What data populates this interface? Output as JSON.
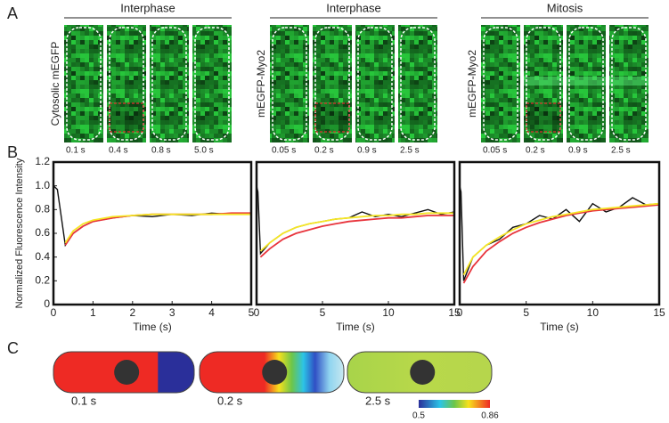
{
  "panel_a": {
    "letter": "A",
    "groups": [
      {
        "header": "Interphase",
        "label": "Cytosolic mEGFP",
        "times": [
          "0.1 s",
          "0.4 s",
          "0.8 s",
          "5.0 s"
        ]
      },
      {
        "header": "Interphase",
        "label": "mEGFP-Myo2",
        "times": [
          "0.05 s",
          "0.2 s",
          "0.9 s",
          "2.5 s"
        ]
      },
      {
        "header": "Mitosis",
        "label": "mEGFP-Myo2",
        "times": [
          "0.05 s",
          "0.2 s",
          "0.9 s",
          "2.5 s"
        ]
      }
    ]
  },
  "panel_b": {
    "letter": "B"
  },
  "chart_data": [
    {
      "type": "line",
      "ylabel": "Normalized Fluorescence Intensity",
      "xlabel": "Time (s)",
      "xlim": [
        0,
        5
      ],
      "xticks": [
        0,
        1,
        2,
        3,
        4,
        5
      ],
      "ylim": [
        0,
        1.2
      ],
      "yticks": [
        0,
        0.2,
        0.4,
        0.6,
        0.8,
        {
          "value": 1,
          "label": "1.0"
        },
        1.2
      ],
      "x": [
        0,
        0.1,
        0.3,
        0.5,
        0.75,
        1,
        1.5,
        2,
        2.5,
        3,
        3.5,
        4,
        4.5,
        5
      ],
      "series": [
        {
          "color": "#111111",
          "values": [
            1.0,
            0.97,
            0.5,
            0.6,
            0.66,
            0.7,
            0.73,
            0.75,
            0.74,
            0.76,
            0.75,
            0.77,
            0.76,
            0.76
          ]
        },
        {
          "color": "#e8343c",
          "values": [
            null,
            null,
            0.5,
            0.6,
            0.66,
            0.7,
            0.73,
            0.75,
            0.76,
            0.76,
            0.76,
            0.76,
            0.77,
            0.77
          ]
        },
        {
          "color": "#f5e625",
          "values": [
            null,
            null,
            0.52,
            0.62,
            0.68,
            0.71,
            0.74,
            0.75,
            0.76,
            0.76,
            0.76,
            0.76,
            0.76,
            0.76
          ]
        }
      ]
    },
    {
      "type": "line",
      "xlabel": "Time (s)",
      "xlim": [
        0,
        15
      ],
      "xticks": [
        0,
        5,
        10,
        15
      ],
      "ylim": [
        0,
        1.2
      ],
      "x": [
        0,
        0.1,
        0.3,
        1,
        2,
        3,
        4,
        5,
        6,
        7,
        8,
        9,
        10,
        11,
        12,
        13,
        14,
        15
      ],
      "series": [
        {
          "color": "#111111",
          "values": [
            1.0,
            0.95,
            0.43,
            0.52,
            0.6,
            0.65,
            0.68,
            0.7,
            0.72,
            0.73,
            0.78,
            0.74,
            0.76,
            0.74,
            0.77,
            0.8,
            0.76,
            0.78
          ]
        },
        {
          "color": "#e8343c",
          "values": [
            null,
            null,
            0.4,
            0.47,
            0.55,
            0.6,
            0.63,
            0.66,
            0.68,
            0.7,
            0.71,
            0.72,
            0.73,
            0.73,
            0.74,
            0.75,
            0.75,
            0.75
          ]
        },
        {
          "color": "#f5e625",
          "values": [
            null,
            null,
            0.45,
            0.52,
            0.6,
            0.65,
            0.68,
            0.7,
            0.72,
            0.73,
            0.74,
            0.75,
            0.75,
            0.76,
            0.76,
            0.77,
            0.77,
            0.77
          ]
        }
      ]
    },
    {
      "type": "line",
      "xlabel": "Time (s)",
      "xlim": [
        0,
        15
      ],
      "xticks": [
        0,
        5,
        10,
        15
      ],
      "ylim": [
        0,
        1.2
      ],
      "x": [
        0,
        0.1,
        0.3,
        1,
        2,
        3,
        4,
        5,
        6,
        7,
        8,
        9,
        10,
        11,
        12,
        13,
        14,
        15
      ],
      "series": [
        {
          "color": "#111111",
          "values": [
            1.0,
            0.95,
            0.2,
            0.4,
            0.5,
            0.55,
            0.65,
            0.68,
            0.75,
            0.72,
            0.8,
            0.7,
            0.85,
            0.78,
            0.82,
            0.9,
            0.84,
            0.85
          ]
        },
        {
          "color": "#e8343c",
          "values": [
            null,
            null,
            0.18,
            0.32,
            0.45,
            0.53,
            0.6,
            0.65,
            0.69,
            0.72,
            0.75,
            0.77,
            0.79,
            0.8,
            0.81,
            0.82,
            0.83,
            0.84
          ]
        },
        {
          "color": "#f5e625",
          "values": [
            null,
            null,
            0.25,
            0.4,
            0.5,
            0.57,
            0.63,
            0.68,
            0.71,
            0.74,
            0.76,
            0.78,
            0.8,
            0.81,
            0.82,
            0.83,
            0.84,
            0.85
          ]
        }
      ]
    }
  ],
  "panel_c": {
    "letter": "C",
    "cells": [
      {
        "time": "0.1 s"
      },
      {
        "time": "0.2 s"
      },
      {
        "time": "2.5 s"
      }
    ],
    "colorbar": {
      "min": 0.5,
      "max": 0.86
    }
  }
}
